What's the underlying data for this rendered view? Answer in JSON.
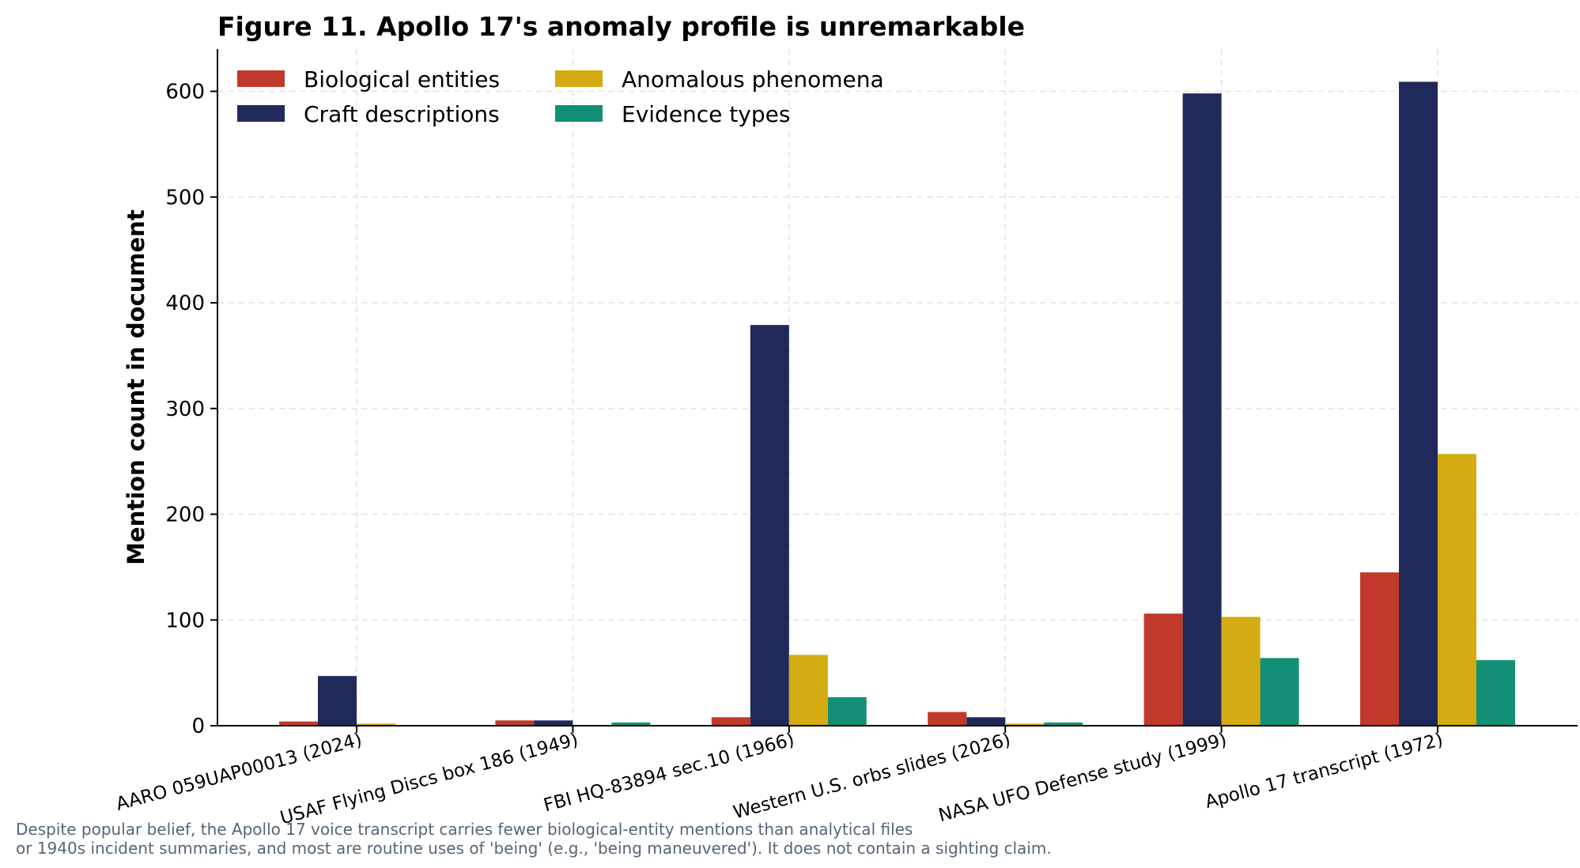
{
  "chart_data": {
    "type": "bar",
    "title": "Figure 11. Apollo 17's anomaly profile is unremarkable",
    "ylabel": "Mention count in document",
    "xlabel": "",
    "ylim": [
      0,
      640
    ],
    "yticks": [
      0,
      100,
      200,
      300,
      400,
      500,
      600
    ],
    "grid": true,
    "legend_position": "top-left",
    "categories": [
      "AARO 059UAP00013 (2024)",
      "USAF Flying Discs box 186 (1949)",
      "FBI HQ-83894 sec.10 (1966)",
      "Western U.S. orbs slides (2026)",
      "NASA UFO Defense study (1999)",
      "Apollo 17 transcript (1972)"
    ],
    "series": [
      {
        "name": "Biological entities",
        "color": "#c0392b",
        "values": [
          4,
          5,
          8,
          13,
          106,
          145
        ]
      },
      {
        "name": "Craft descriptions",
        "color": "#1f2a5a",
        "values": [
          47,
          5,
          379,
          8,
          598,
          609
        ]
      },
      {
        "name": "Anomalous phenomena",
        "color": "#d4ac12",
        "values": [
          2,
          0,
          67,
          2,
          103,
          257
        ]
      },
      {
        "name": "Evidence types",
        "color": "#148f77",
        "values": [
          0,
          3,
          27,
          3,
          64,
          62
        ]
      }
    ]
  },
  "caption": {
    "line1": "Despite popular belief, the Apollo 17 voice transcript carries fewer biological-entity mentions than analytical files",
    "line2": "or 1940s incident summaries, and most are routine uses of 'being' (e.g., 'being maneuvered'). It does not contain a sighting claim."
  }
}
